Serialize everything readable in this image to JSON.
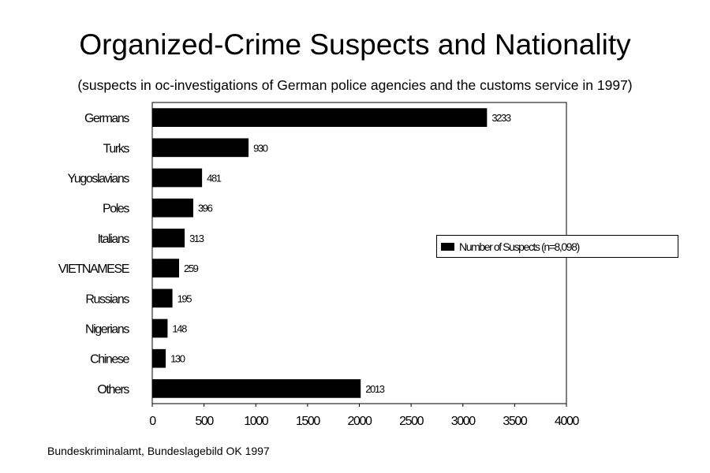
{
  "chart_data": {
    "type": "bar",
    "orientation": "horizontal",
    "title": "Organized-Crime Suspects and Nationality",
    "subtitle": "(suspects in oc-investigations of German police agencies and the customs service in 1997)",
    "source": "Bundeskriminalamt, Bundeslagebild OK 1997",
    "categories": [
      "Germans",
      "Turks",
      "Yugoslavians",
      "Poles",
      "Italians",
      "VIETNAMESE",
      "Russians",
      "Nigerians",
      "Chinese",
      "Others"
    ],
    "series": [
      {
        "name": "Number of Suspects (n=8,098)",
        "values": [
          3233,
          930,
          481,
          396,
          313,
          259,
          195,
          148,
          130,
          2013
        ],
        "color": "#000000"
      }
    ],
    "data_labels": [
      "3233",
      "930",
      "481",
      "396",
      "313",
      "259",
      "195",
      "148",
      "130",
      "2013"
    ],
    "x_ticks": [
      0,
      500,
      1000,
      1500,
      2000,
      2500,
      3000,
      3500,
      4000
    ],
    "xlim": [
      0,
      4000
    ],
    "xlabel": "",
    "ylabel": "",
    "grid": false,
    "legend_position": "right"
  }
}
